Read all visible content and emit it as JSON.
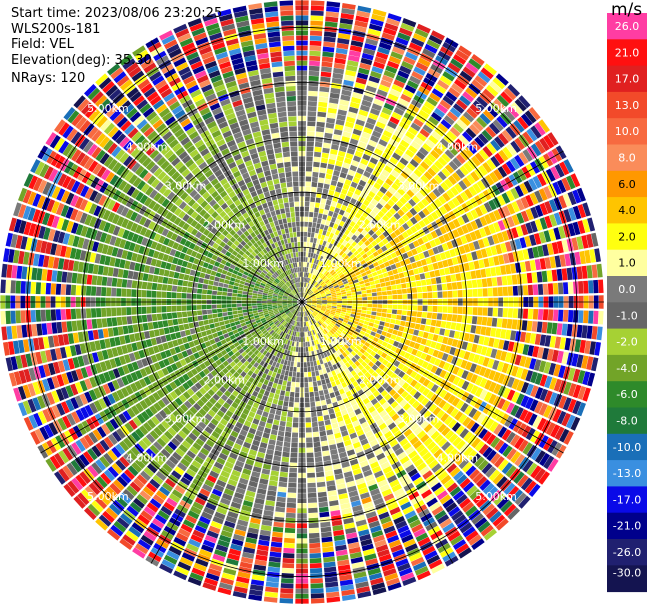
{
  "header": {
    "start_time": "Start time: 2023/08/06 23:20:25",
    "instrument": "WLS200s-181",
    "field": "Field: VEL",
    "elevation": "Elevation(deg): 35.30",
    "nrays": "NRays: 120"
  },
  "chart_data": {
    "type": "heatmap",
    "title": "",
    "projection": "polar PPI (plan position indicator)",
    "field": "VEL",
    "elevation_deg": 35.3,
    "n_rays": 120,
    "unit": "m/s",
    "value_range": [
      -30.0,
      30.0
    ],
    "range_rings_km": [
      1.0,
      2.0,
      3.0,
      4.0,
      5.0
    ],
    "ring_labels": [
      "1.00km",
      "2.00km",
      "3.00km",
      "4.00km",
      "5.00km"
    ],
    "max_range_km": 5.5,
    "colorbar": {
      "ticks": [
        "26.0",
        "21.0",
        "17.0",
        "13.0",
        "10.0",
        "8.0",
        "6.0",
        "4.0",
        "2.0",
        "1.0",
        "0.0",
        "-1.0",
        "-2.0",
        "-4.0",
        "-6.0",
        "-8.0",
        "-10.0",
        "-13.0",
        "-17.0",
        "-21.0",
        "-26.0",
        "-30.0"
      ],
      "colors": [
        "#ff3da3",
        "#ff1010",
        "#e02020",
        "#f24a2a",
        "#f76a40",
        "#fa8c5a",
        "#ff9800",
        "#ffc400",
        "#ffff10",
        "#ffffa0",
        "#7a7a7a",
        "#666666",
        "#a6d134",
        "#72a428",
        "#2e8a2a",
        "#1f7a3a",
        "#1a6fb8",
        "#3a8fe0",
        "#0a0ae8",
        "#00008c",
        "#202070",
        "#141450"
      ]
    },
    "pattern_description_values": {
      "near_field_east_sector": "positive 0–6 m/s (yellow/orange)",
      "near_field_west_sector": "negative -1 to -6 m/s (green)",
      "far_range": "noisy values spanning full scale"
    }
  }
}
